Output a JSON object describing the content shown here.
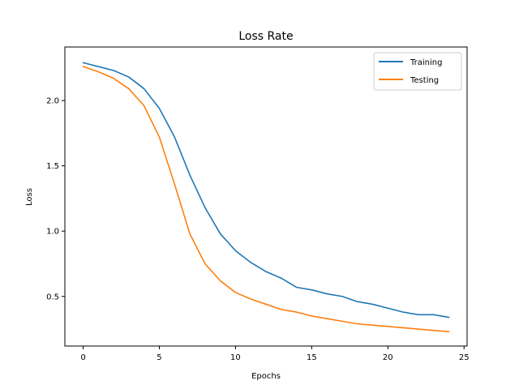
{
  "chart_data": {
    "type": "line",
    "title": "Loss Rate",
    "xlabel": "Epochs",
    "ylabel": "Loss",
    "xlim": [
      -1.2,
      25.2
    ],
    "ylim": [
      0.12,
      2.41
    ],
    "x_ticks": [
      0,
      5,
      10,
      15,
      20,
      25
    ],
    "y_ticks": [
      0.5,
      1.0,
      1.5,
      2.0
    ],
    "x_tick_labels": [
      "0",
      "5",
      "10",
      "15",
      "20",
      "25"
    ],
    "y_tick_labels": [
      "0.5",
      "1.0",
      "1.5",
      "2.0"
    ],
    "grid": false,
    "legend_position": "top-right",
    "x": [
      0,
      1,
      2,
      3,
      4,
      5,
      6,
      7,
      8,
      9,
      10,
      11,
      12,
      13,
      14,
      15,
      16,
      17,
      18,
      19,
      20,
      21,
      22,
      23,
      24
    ],
    "series": [
      {
        "name": "Training",
        "color": "#1f77b4",
        "values": [
          2.29,
          2.26,
          2.23,
          2.18,
          2.09,
          1.94,
          1.72,
          1.43,
          1.18,
          0.98,
          0.85,
          0.76,
          0.69,
          0.64,
          0.57,
          0.55,
          0.52,
          0.5,
          0.46,
          0.44,
          0.41,
          0.38,
          0.36,
          0.36,
          0.34
        ]
      },
      {
        "name": "Testing",
        "color": "#ff7f0e",
        "values": [
          2.26,
          2.22,
          2.17,
          2.09,
          1.96,
          1.72,
          1.36,
          0.98,
          0.75,
          0.62,
          0.53,
          0.48,
          0.44,
          0.4,
          0.38,
          0.35,
          0.33,
          0.31,
          0.29,
          0.28,
          0.27,
          0.26,
          0.25,
          0.24,
          0.23
        ]
      }
    ]
  }
}
